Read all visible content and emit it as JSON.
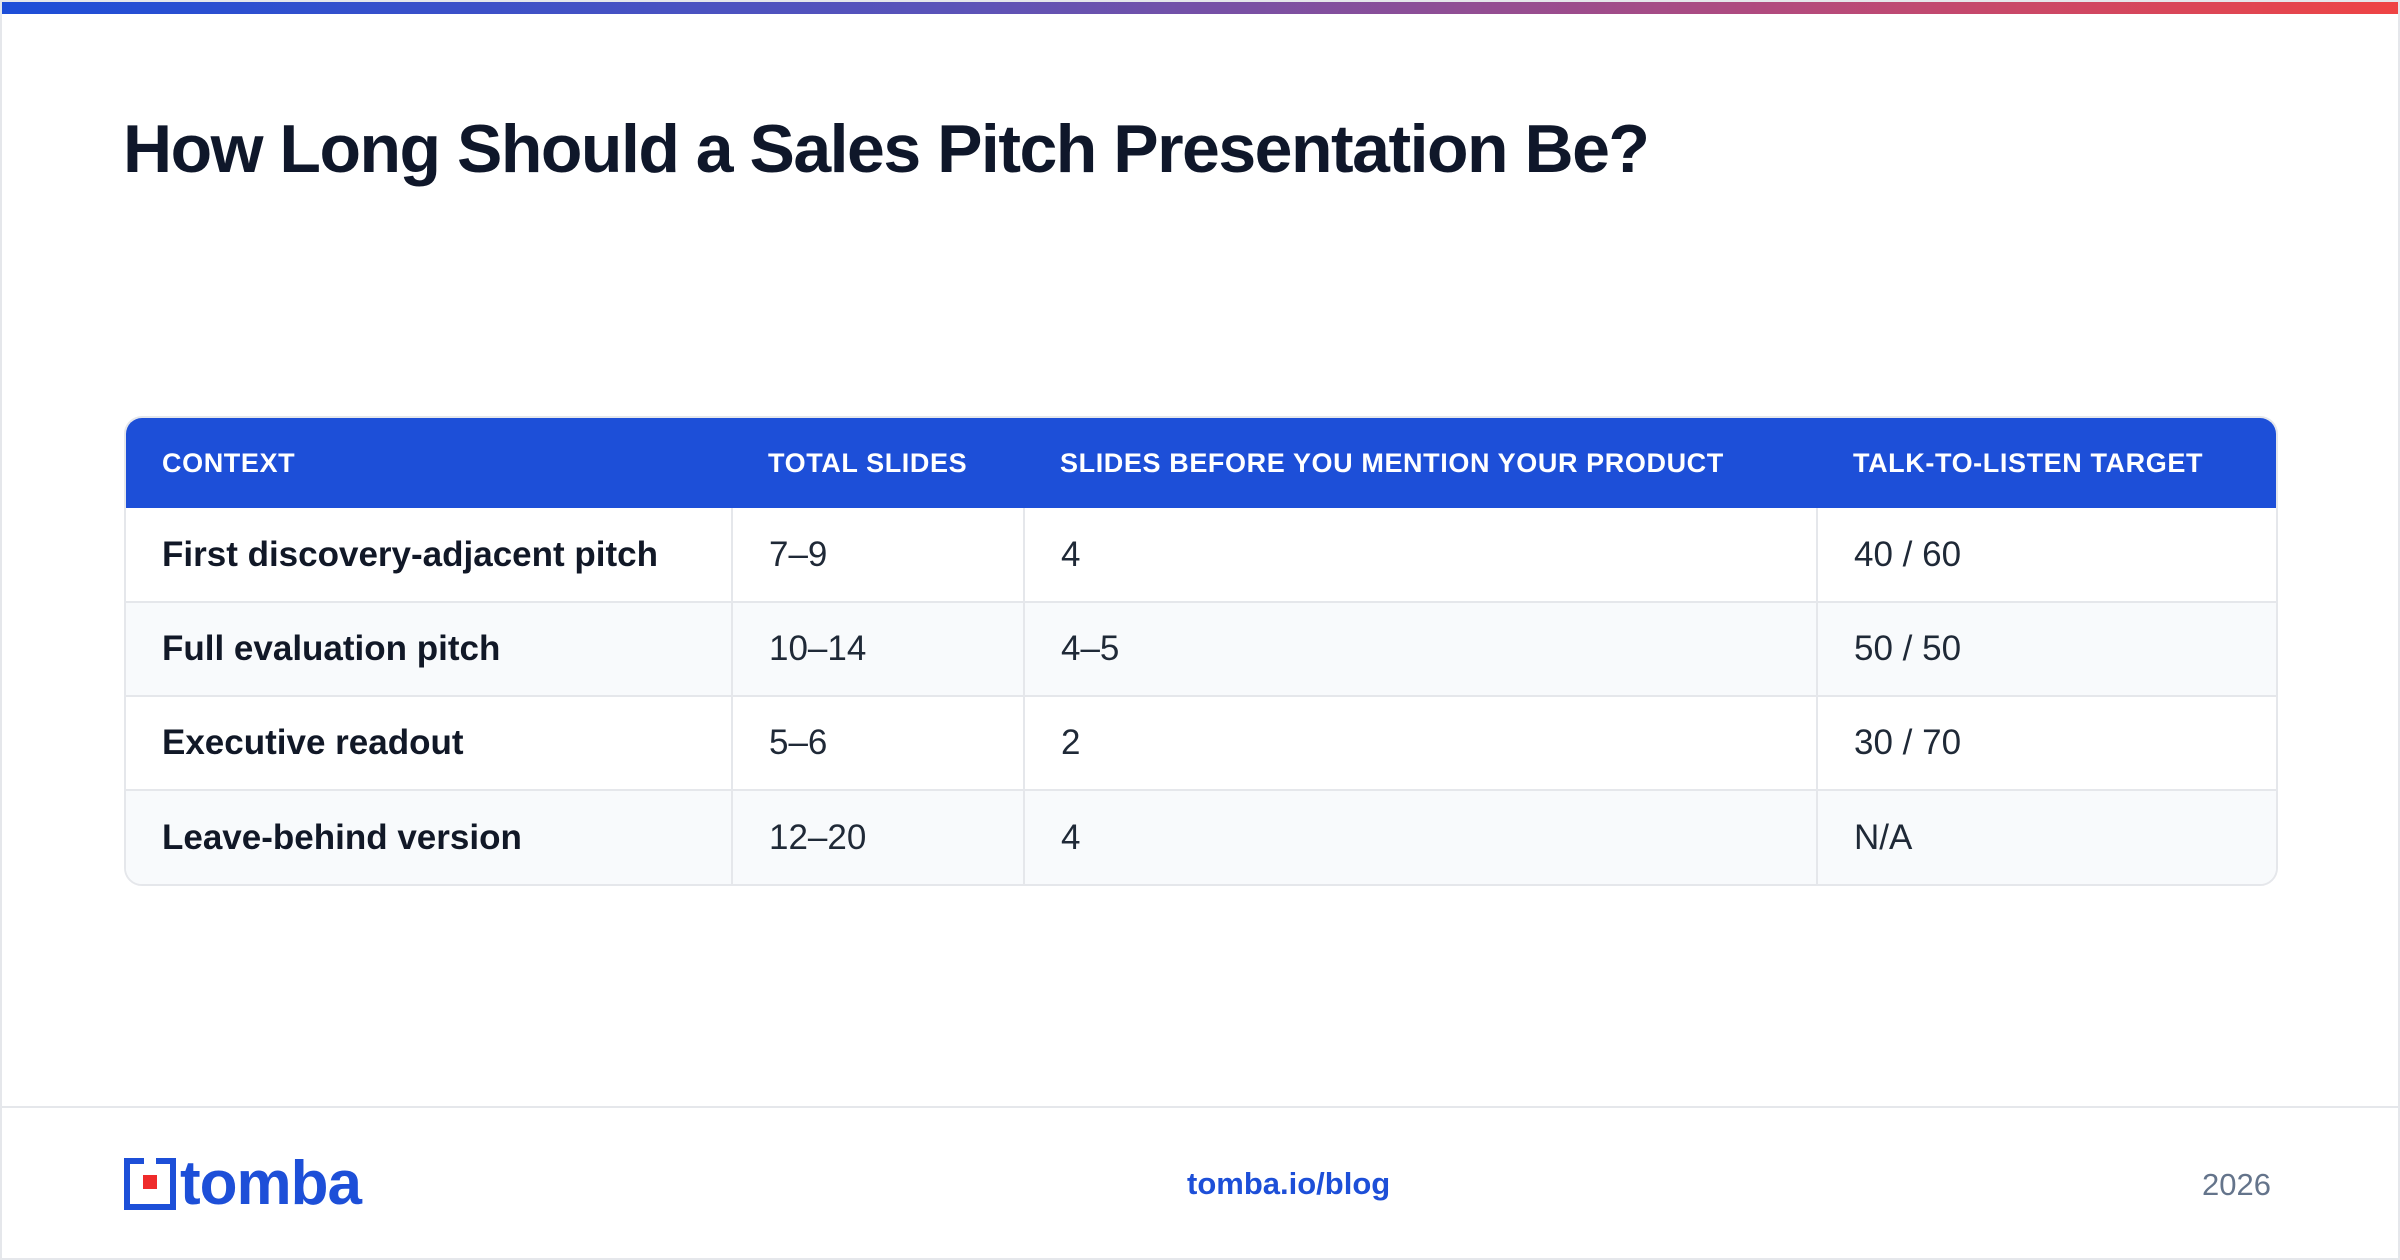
{
  "title": "How Long Should a Sales Pitch Presentation Be?",
  "table": {
    "headers": [
      "CONTEXT",
      "TOTAL SLIDES",
      "SLIDES BEFORE YOU MENTION YOUR PRODUCT",
      "TALK-TO-LISTEN TARGET"
    ],
    "rows": [
      [
        "First discovery-adjacent pitch",
        "7–9",
        "4",
        "40 / 60"
      ],
      [
        "Full evaluation pitch",
        "10–14",
        "4–5",
        "50 / 50"
      ],
      [
        "Executive readout",
        "5–6",
        "2",
        "30 / 70"
      ],
      [
        "Leave-behind version",
        "12–20",
        "4",
        "N/A"
      ]
    ]
  },
  "footer": {
    "logo_text": "tomba",
    "logo_icon": "tomba-logo-icon",
    "link": "tomba.io/blog",
    "year": "2026"
  },
  "colors": {
    "accent": "#1d4fd8",
    "logo_red": "#ef2b2b",
    "gradient_start": "#1d4ed8",
    "gradient_end": "#ef4444"
  }
}
